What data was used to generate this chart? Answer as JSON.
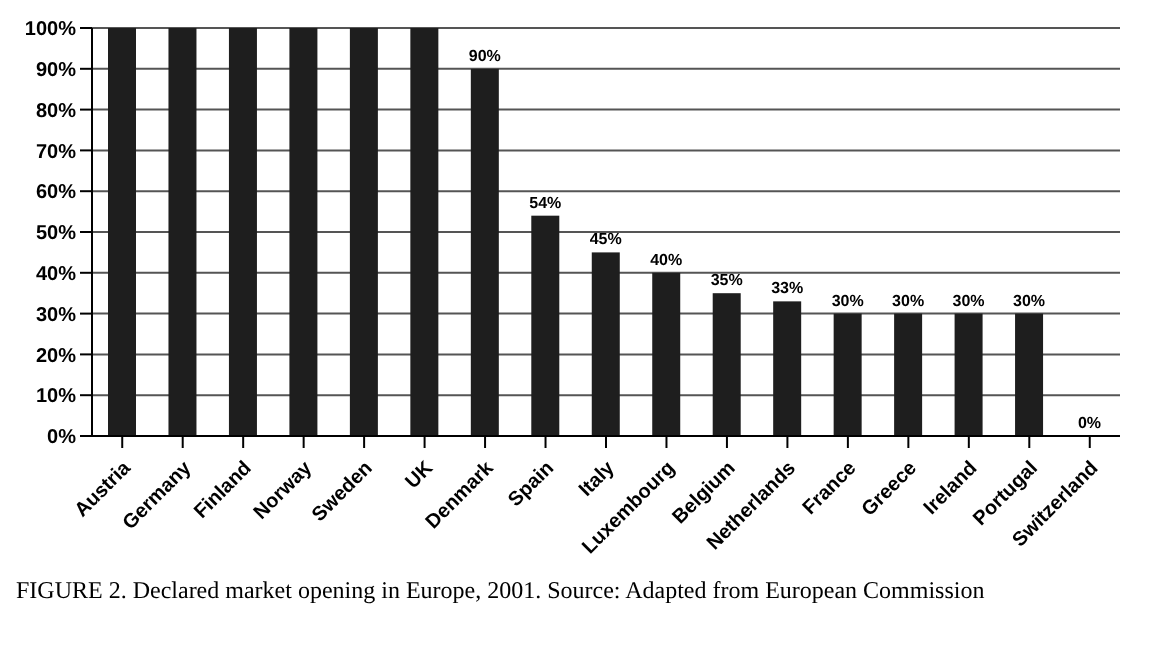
{
  "chart_data": {
    "type": "bar",
    "categories": [
      "Austria",
      "Germany",
      "Finland",
      "Norway",
      "Sweden",
      "UK",
      "Denmark",
      "Spain",
      "Italy",
      "Luxembourg",
      "Belgium",
      "Netherlands",
      "France",
      "Greece",
      "Ireland",
      "Portugal",
      "Switzerland"
    ],
    "values": [
      100,
      100,
      100,
      100,
      100,
      100,
      90,
      54,
      45,
      40,
      35,
      33,
      30,
      30,
      30,
      30,
      0
    ],
    "value_labels": [
      null,
      null,
      null,
      null,
      null,
      null,
      "90%",
      "54%",
      "45%",
      "40%",
      "35%",
      "33%",
      "30%",
      "30%",
      "30%",
      "30%",
      "0%"
    ],
    "color": "#1e1e1e",
    "ylim": [
      0,
      100
    ],
    "yticks": [
      {
        "value": 0,
        "label": "0%"
      },
      {
        "value": 10,
        "label": "10%"
      },
      {
        "value": 20,
        "label": "20%"
      },
      {
        "value": 30,
        "label": "30%"
      },
      {
        "value": 40,
        "label": "40%"
      },
      {
        "value": 50,
        "label": "50%"
      },
      {
        "value": 60,
        "label": "60%"
      },
      {
        "value": 70,
        "label": "70%"
      },
      {
        "value": 80,
        "label": "80%"
      },
      {
        "value": 90,
        "label": "90%"
      },
      {
        "value": 100,
        "label": "100%"
      }
    ],
    "grid": "y",
    "annotations": [
      "FIGURE 2. Declared market opening in Europe, 2001. Source: Adapted from European Commission"
    ]
  }
}
